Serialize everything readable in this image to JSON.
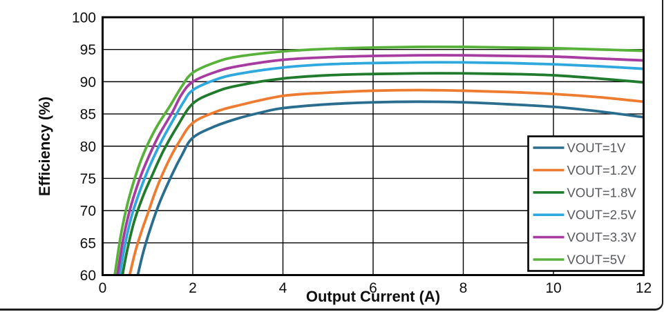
{
  "figure": {
    "background": "#ffffff",
    "outer_border_color": "#1f1f1f",
    "grid_color": "#000000",
    "frame_color": "#000000",
    "tick_label_color": "#0f0f0f",
    "axis_title_color": "#0f0f0f",
    "legend_text_color": "#55575b",
    "legend_border_color": "#000000",
    "legend_background": "#ffffff"
  },
  "chart_data": {
    "type": "line",
    "title": "",
    "xlabel": "Output Current (A)",
    "ylabel": "Efficiency (%)",
    "xlim": [
      0,
      12
    ],
    "ylim": [
      60,
      100
    ],
    "x_ticks": [
      0,
      2,
      4,
      6,
      8,
      10,
      12
    ],
    "y_ticks": [
      60,
      65,
      70,
      75,
      80,
      85,
      90,
      95,
      100
    ],
    "grid": true,
    "legend_position": "bottom-right",
    "series": [
      {
        "name": "VOUT=1V",
        "color": "#2a6d8e",
        "points": [
          [
            0.78,
            60
          ],
          [
            0.9,
            63.5
          ],
          [
            1.05,
            67
          ],
          [
            1.25,
            71
          ],
          [
            1.5,
            75
          ],
          [
            1.75,
            78.5
          ],
          [
            2,
            81.3
          ],
          [
            2.5,
            83.1
          ],
          [
            3,
            84.3
          ],
          [
            3.5,
            85.2
          ],
          [
            4,
            85.9
          ],
          [
            5,
            86.5
          ],
          [
            6,
            86.8
          ],
          [
            7,
            86.9
          ],
          [
            8,
            86.8
          ],
          [
            9,
            86.5
          ],
          [
            10,
            86.1
          ],
          [
            11,
            85.4
          ],
          [
            12,
            84.5
          ]
        ]
      },
      {
        "name": "VOUT=1.2V",
        "color": "#ee7c30",
        "points": [
          [
            0.6,
            60
          ],
          [
            0.72,
            63.5
          ],
          [
            0.85,
            66.5
          ],
          [
            1,
            69.5
          ],
          [
            1.2,
            73.5
          ],
          [
            1.45,
            77.5
          ],
          [
            1.7,
            80.7
          ],
          [
            2,
            83.6
          ],
          [
            2.5,
            85.3
          ],
          [
            3,
            86.3
          ],
          [
            4,
            87.8
          ],
          [
            5,
            88.3
          ],
          [
            6,
            88.6
          ],
          [
            7,
            88.7
          ],
          [
            8,
            88.6
          ],
          [
            9,
            88.4
          ],
          [
            10,
            88.1
          ],
          [
            11,
            87.6
          ],
          [
            12,
            86.9
          ]
        ]
      },
      {
        "name": "VOUT=1.8V",
        "color": "#217b2d",
        "points": [
          [
            0.44,
            60
          ],
          [
            0.55,
            64
          ],
          [
            0.7,
            68.3
          ],
          [
            0.9,
            72.3
          ],
          [
            1.1,
            75.5
          ],
          [
            1.35,
            79.3
          ],
          [
            1.65,
            83
          ],
          [
            2,
            86.6
          ],
          [
            2.5,
            88.4
          ],
          [
            3,
            89.4
          ],
          [
            4,
            90.5
          ],
          [
            5,
            91
          ],
          [
            6,
            91.2
          ],
          [
            7,
            91.3
          ],
          [
            8,
            91.3
          ],
          [
            9,
            91.2
          ],
          [
            10,
            91
          ],
          [
            11,
            90.5
          ],
          [
            12,
            89.9
          ]
        ]
      },
      {
        "name": "VOUT=2.5V",
        "color": "#2fa8dd",
        "points": [
          [
            0.38,
            60
          ],
          [
            0.5,
            64.8
          ],
          [
            0.65,
            69.3
          ],
          [
            0.85,
            73.5
          ],
          [
            1.05,
            77
          ],
          [
            1.3,
            80.7
          ],
          [
            1.6,
            84.5
          ],
          [
            1.8,
            86.9
          ],
          [
            2,
            88.7
          ],
          [
            2.5,
            90.3
          ],
          [
            3,
            91.2
          ],
          [
            4,
            92.2
          ],
          [
            5,
            92.7
          ],
          [
            6,
            92.9
          ],
          [
            7,
            93
          ],
          [
            8,
            93
          ],
          [
            9,
            92.9
          ],
          [
            10,
            92.7
          ],
          [
            11,
            92.4
          ],
          [
            12,
            92
          ]
        ]
      },
      {
        "name": "VOUT=3.3V",
        "color": "#a63ba0",
        "points": [
          [
            0.33,
            60
          ],
          [
            0.45,
            65.3
          ],
          [
            0.6,
            70
          ],
          [
            0.8,
            74.5
          ],
          [
            1,
            78
          ],
          [
            1.25,
            81.7
          ],
          [
            1.55,
            85.3
          ],
          [
            1.75,
            88
          ],
          [
            2,
            90
          ],
          [
            2.5,
            91.5
          ],
          [
            3,
            92.4
          ],
          [
            4,
            93.4
          ],
          [
            5,
            93.8
          ],
          [
            6,
            94
          ],
          [
            7,
            94.1
          ],
          [
            8,
            94.1
          ],
          [
            9,
            94
          ],
          [
            10,
            93.9
          ],
          [
            11,
            93.6
          ],
          [
            12,
            93.3
          ]
        ]
      },
      {
        "name": "VOUT=5V",
        "color": "#57b13a",
        "points": [
          [
            0.27,
            60
          ],
          [
            0.4,
            66
          ],
          [
            0.55,
            71
          ],
          [
            0.75,
            75.8
          ],
          [
            0.95,
            79.5
          ],
          [
            1.2,
            83
          ],
          [
            1.5,
            86.3
          ],
          [
            1.75,
            89.2
          ],
          [
            2,
            91.4
          ],
          [
            2.5,
            93
          ],
          [
            3,
            93.9
          ],
          [
            4,
            94.7
          ],
          [
            5,
            95.1
          ],
          [
            6,
            95.3
          ],
          [
            7,
            95.4
          ],
          [
            8,
            95.4
          ],
          [
            9,
            95.3
          ],
          [
            10,
            95.2
          ],
          [
            11,
            95
          ],
          [
            12,
            94.8
          ]
        ]
      }
    ]
  }
}
